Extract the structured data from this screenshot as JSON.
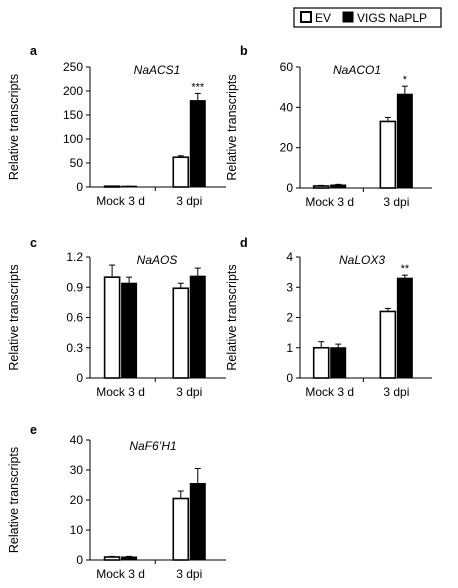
{
  "legend": {
    "position": "top-right",
    "entries": [
      {
        "name": "EV",
        "color": "#ffffff"
      },
      {
        "name": "VIGS NaPLP",
        "color": "#000000"
      }
    ]
  },
  "chart_data": [
    {
      "type": "bar",
      "panel": "a",
      "title": "NaACS1",
      "ylabel": "Relative  transcripts",
      "categories": [
        "Mock 3 d",
        "3 dpi"
      ],
      "ylim": [
        0,
        250
      ],
      "yticks": [
        "0",
        "50",
        "100",
        "150",
        "200",
        "250"
      ],
      "series": [
        {
          "name": "EV",
          "values": [
            1,
            62
          ],
          "errors": [
            0.5,
            3
          ]
        },
        {
          "name": "VIGS NaPLP",
          "values": [
            1,
            180
          ],
          "errors": [
            0.5,
            15
          ]
        }
      ],
      "annotations": [
        {
          "text": "***",
          "category": 1,
          "series": 1
        }
      ]
    },
    {
      "type": "bar",
      "panel": "b",
      "title": "NaACO1",
      "ylabel": "Relative  transcripts",
      "categories": [
        "Mock 3 d",
        "3 dpi"
      ],
      "ylim": [
        0,
        60
      ],
      "yticks": [
        "0",
        "20",
        "40",
        "60"
      ],
      "series": [
        {
          "name": "EV",
          "values": [
            1,
            33
          ],
          "errors": [
            0.3,
            2
          ]
        },
        {
          "name": "VIGS NaPLP",
          "values": [
            1.5,
            46.5
          ],
          "errors": [
            0.3,
            4
          ]
        }
      ],
      "annotations": [
        {
          "text": "*",
          "category": 1,
          "series": 1
        }
      ]
    },
    {
      "type": "bar",
      "panel": "c",
      "title": "NaAOS",
      "ylabel": "Relative  transcripts",
      "categories": [
        "Mock 3 d",
        "3 dpi"
      ],
      "ylim": [
        0,
        1.2
      ],
      "yticks": [
        "0",
        "0.3",
        "0.6",
        "0.9",
        "1.2"
      ],
      "series": [
        {
          "name": "EV",
          "values": [
            1.0,
            0.89
          ],
          "errors": [
            0.12,
            0.05
          ]
        },
        {
          "name": "VIGS NaPLP",
          "values": [
            0.94,
            1.01
          ],
          "errors": [
            0.06,
            0.08
          ]
        }
      ],
      "annotations": []
    },
    {
      "type": "bar",
      "panel": "d",
      "title": "NaLOX3",
      "ylabel": "Relative  transcripts",
      "categories": [
        "Mock 3 d",
        "3 dpi"
      ],
      "ylim": [
        0,
        4
      ],
      "yticks": [
        "0",
        "1",
        "2",
        "3",
        "4"
      ],
      "series": [
        {
          "name": "EV",
          "values": [
            1.0,
            2.2
          ],
          "errors": [
            0.2,
            0.1
          ]
        },
        {
          "name": "VIGS NaPLP",
          "values": [
            1.0,
            3.3
          ],
          "errors": [
            0.12,
            0.1
          ]
        }
      ],
      "annotations": [
        {
          "text": "**",
          "category": 1,
          "series": 1
        }
      ]
    },
    {
      "type": "bar",
      "panel": "e",
      "title": "NaF6’H1",
      "ylabel": "Relative  transcripts",
      "categories": [
        "Mock 3 d",
        "3 dpi"
      ],
      "ylim": [
        0,
        40
      ],
      "yticks": [
        "0",
        "10",
        "20",
        "30",
        "40"
      ],
      "series": [
        {
          "name": "EV",
          "values": [
            1,
            20.5
          ],
          "errors": [
            0.2,
            2.5
          ]
        },
        {
          "name": "VIGS NaPLP",
          "values": [
            1,
            25.5
          ],
          "errors": [
            0.2,
            5
          ]
        }
      ],
      "annotations": []
    }
  ]
}
